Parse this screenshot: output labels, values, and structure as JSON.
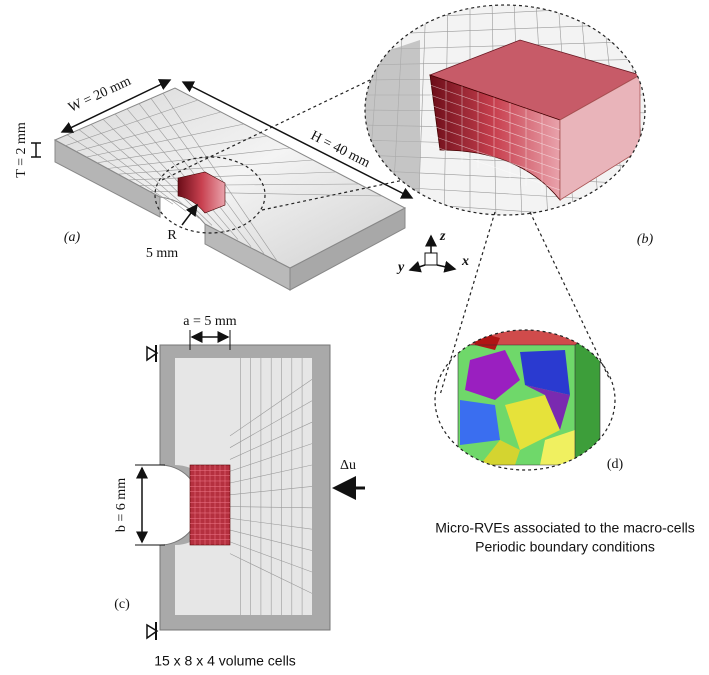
{
  "panel_a": {
    "label": "(a)",
    "width": "W = 20 mm",
    "thickness": "T = 2 mm",
    "height": "H = 40 mm",
    "radius_symbol": "R",
    "radius_value": "5 mm"
  },
  "panel_b": {
    "label": "(b)"
  },
  "axes": {
    "z": "z",
    "y": "y",
    "x": "x"
  },
  "panel_c": {
    "label": "(c)",
    "a_dimension": "a = 5 mm",
    "b_dimension": "b = 6 mm",
    "load": "Δu",
    "caption": "15 x 8 x 4 volume cells"
  },
  "panel_d": {
    "label": "(d)",
    "caption_line_1": "Micro-RVEs associated to the macro-cells",
    "caption_line_2": "Periodic boundary conditions"
  }
}
